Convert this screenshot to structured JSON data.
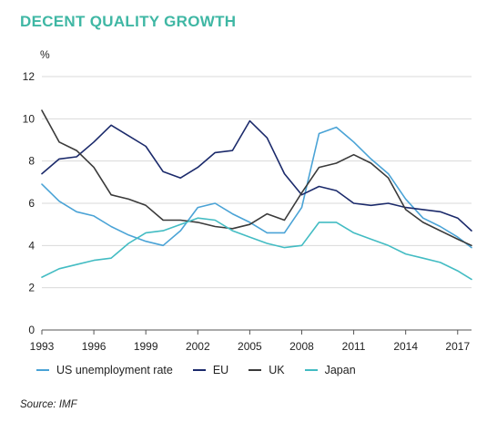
{
  "title": "DECENT QUALITY GROWTH",
  "source": "Source: IMF",
  "colors": {
    "title": "#3fb7a4",
    "US": "#4aa3d6",
    "EU": "#1b2a6b",
    "UK": "#3a3a3a",
    "Japan": "#43bcc3",
    "grid": "#d9d9d9",
    "axis": "#555555"
  },
  "chart_data": {
    "type": "line",
    "ylabel": "%",
    "ylim": [
      0,
      12
    ],
    "yticks": [
      0,
      2,
      4,
      6,
      8,
      10,
      12
    ],
    "xlim": [
      1993,
      2017.8
    ],
    "xticks": [
      1993,
      1996,
      1999,
      2002,
      2005,
      2008,
      2011,
      2014,
      2017
    ],
    "grid": "horizontal",
    "legend_position": "bottom",
    "x": [
      1993,
      1994,
      1995,
      1996,
      1997,
      1998,
      1999,
      2000,
      2001,
      2002,
      2003,
      2004,
      2005,
      2006,
      2007,
      2008,
      2009,
      2010,
      2011,
      2012,
      2013,
      2014,
      2015,
      2016,
      2017,
      2017.8
    ],
    "series": [
      {
        "name": "US unemployment rate",
        "color": "US",
        "values": [
          6.9,
          6.1,
          5.6,
          5.4,
          4.9,
          4.5,
          4.2,
          4.0,
          4.7,
          5.8,
          6.0,
          5.5,
          5.1,
          4.6,
          4.6,
          5.8,
          9.3,
          9.6,
          8.9,
          8.1,
          7.4,
          6.2,
          5.3,
          4.9,
          4.4,
          3.9
        ]
      },
      {
        "name": "EU",
        "color": "EU",
        "values": [
          7.4,
          8.1,
          8.2,
          8.9,
          9.7,
          9.2,
          8.7,
          7.5,
          7.2,
          7.7,
          8.4,
          8.5,
          9.9,
          9.1,
          7.4,
          6.4,
          6.8,
          6.6,
          6.0,
          5.9,
          6.0,
          5.8,
          5.7,
          5.6,
          5.3,
          4.7
        ]
      },
      {
        "name": "UK",
        "color": "UK",
        "values": [
          10.4,
          8.9,
          8.5,
          7.7,
          6.4,
          6.2,
          5.9,
          5.2,
          5.2,
          5.1,
          4.9,
          4.8,
          5.0,
          5.5,
          5.2,
          6.5,
          7.7,
          7.9,
          8.3,
          7.9,
          7.2,
          5.7,
          5.1,
          4.7,
          4.3,
          4.0
        ]
      },
      {
        "name": "Japan",
        "color": "Japan",
        "values": [
          2.5,
          2.9,
          3.1,
          3.3,
          3.4,
          4.1,
          4.6,
          4.7,
          5.0,
          5.3,
          5.2,
          4.7,
          4.4,
          4.1,
          3.9,
          4.0,
          5.1,
          5.1,
          4.6,
          4.3,
          4.0,
          3.6,
          3.4,
          3.2,
          2.8,
          2.4
        ]
      }
    ]
  }
}
